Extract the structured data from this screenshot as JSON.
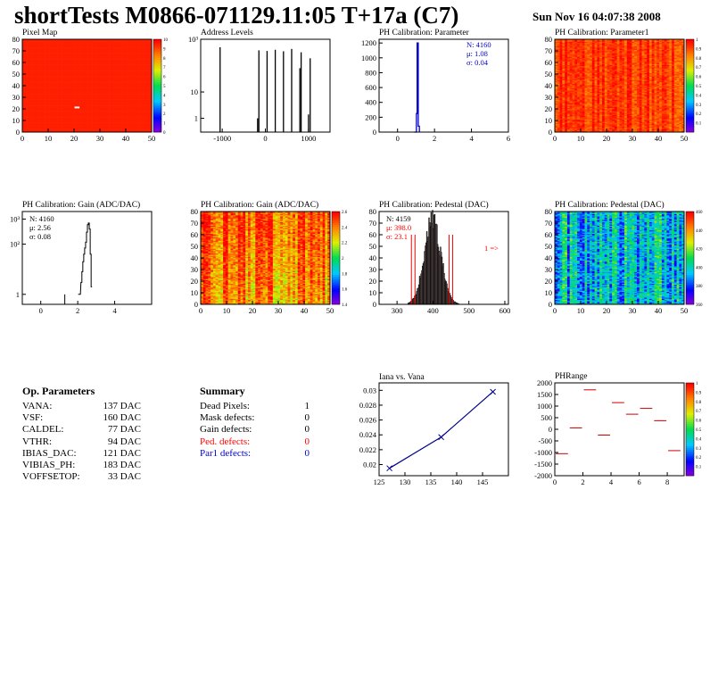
{
  "title": "shortTests M0866-071129.11:05 T+17a (C7)",
  "date": "Sun Nov 16 04:07:38 2008",
  "params": {
    "header": "Op. Parameters",
    "rows": [
      {
        "name": "VANA:",
        "value": "137 DAC"
      },
      {
        "name": "VSF:",
        "value": "160 DAC"
      },
      {
        "name": "CALDEL:",
        "value": "77 DAC"
      },
      {
        "name": "VTHR:",
        "value": "94 DAC"
      },
      {
        "name": "IBIAS_DAC:",
        "value": "121 DAC"
      },
      {
        "name": "VIBIAS_PH:",
        "value": "183 DAC"
      },
      {
        "name": "VOFFSETOP:",
        "value": "33 DAC"
      }
    ]
  },
  "summary": {
    "header": "Summary",
    "rows": [
      {
        "name": "Dead Pixels:",
        "value": "1",
        "color": "#000000"
      },
      {
        "name": "Mask defects:",
        "value": "0",
        "color": "#000000"
      },
      {
        "name": "Gain defects:",
        "value": "0",
        "color": "#000000"
      },
      {
        "name": "Ped. defects:",
        "value": "0",
        "color": "#ff0000"
      },
      {
        "name": "Par1 defects:",
        "value": "0",
        "color": "#0000cc"
      }
    ]
  },
  "chart_data": [
    {
      "type": "heatmap",
      "title": "Pixel Map",
      "xlim": [
        0,
        52
      ],
      "ylim": [
        0,
        80
      ],
      "xticks": [
        "0",
        "10",
        "20",
        "30",
        "40",
        "50"
      ],
      "yticks": [
        "0",
        "10",
        "20",
        "30",
        "40",
        "50",
        "60",
        "70",
        "80"
      ],
      "zticks": [
        "0",
        "1",
        "2",
        "3",
        "4",
        "5",
        "6",
        "7",
        "8",
        "9",
        "10"
      ],
      "zlim": [
        0,
        10
      ],
      "fill": 0.96,
      "noise": 0.0,
      "hot": [
        {
          "x": 21,
          "y": 21,
          "z": 0.1
        }
      ]
    },
    {
      "type": "bar",
      "title": "Address Levels",
      "log": true,
      "xlim": [
        -1500,
        1500
      ],
      "ylim_log": [
        0.3,
        1000
      ],
      "xticks": [
        "-1000",
        "0",
        "1000"
      ],
      "yticks": [
        "1",
        "10",
        "10³"
      ],
      "peaks": [
        {
          "x": -1050,
          "y": 500
        },
        {
          "x": -180,
          "y": 1
        },
        {
          "x": -150,
          "y": 380
        },
        {
          "x": 40,
          "y": 360
        },
        {
          "x": 230,
          "y": 400
        },
        {
          "x": 420,
          "y": 350
        },
        {
          "x": 610,
          "y": 430
        },
        {
          "x": 800,
          "y": 80
        },
        {
          "x": 830,
          "y": 320
        },
        {
          "x": 1000,
          "y": 1.4
        },
        {
          "x": 1040,
          "y": 190
        }
      ]
    },
    {
      "type": "bar",
      "title": "PH Calibration: Parameter",
      "xlim": [
        -1,
        6
      ],
      "ylim": [
        0,
        1250
      ],
      "xticks": [
        "0",
        "2",
        "4",
        "6"
      ],
      "yticks": [
        "0",
        "200",
        "400",
        "600",
        "800",
        "1000",
        "1200"
      ],
      "peak": {
        "x": 1.08,
        "y": 1200
      },
      "stats": [
        "N: 4160",
        "μ: 1.08",
        "σ: 0.04"
      ]
    },
    {
      "type": "heatmap",
      "title": "PH Calibration: Parameter1",
      "xlim": [
        0,
        52
      ],
      "ylim": [
        0,
        80
      ],
      "xticks": [
        "0",
        "10",
        "20",
        "30",
        "40",
        "50"
      ],
      "yticks": [
        "0",
        "10",
        "20",
        "30",
        "40",
        "50",
        "60",
        "70",
        "80"
      ],
      "zticks": [
        "",
        "0.1",
        "0.2",
        "0.3",
        "0.4",
        "0.5",
        "0.6",
        "0.7",
        "0.8",
        "0.9",
        "1"
      ],
      "zlim": [
        0,
        1
      ],
      "fill": 0.93,
      "noise": 0.06,
      "hot": []
    },
    {
      "type": "bar",
      "title": "PH Calibration: Gain (ADC/DAC)",
      "log": true,
      "xlim": [
        -1,
        6
      ],
      "ylim_log": [
        0.4,
        2000
      ],
      "xticks": [
        "0",
        "2",
        "4"
      ],
      "yticks": [
        "1",
        "10²",
        "10³"
      ],
      "stats": [
        "N: 4160",
        "μ: 2.56",
        "σ: 0.08"
      ],
      "bins": [
        {
          "x": 1.3,
          "y": 1
        },
        {
          "x": 2.05,
          "y": 1
        },
        {
          "x": 2.12,
          "y": 1
        },
        {
          "x": 2.2,
          "y": 3
        },
        {
          "x": 2.25,
          "y": 8
        },
        {
          "x": 2.3,
          "y": 20
        },
        {
          "x": 2.35,
          "y": 40
        },
        {
          "x": 2.4,
          "y": 70
        },
        {
          "x": 2.45,
          "y": 120
        },
        {
          "x": 2.5,
          "y": 300
        },
        {
          "x": 2.55,
          "y": 600
        },
        {
          "x": 2.6,
          "y": 700
        },
        {
          "x": 2.65,
          "y": 400
        },
        {
          "x": 2.7,
          "y": 40
        },
        {
          "x": 2.75,
          "y": 2
        }
      ]
    },
    {
      "type": "heatmap",
      "title": "PH Calibration: Gain (ADC/DAC)",
      "xlim": [
        0,
        52
      ],
      "ylim": [
        0,
        80
      ],
      "xticks": [
        "0",
        "10",
        "20",
        "30",
        "40",
        "50"
      ],
      "yticks": [
        "0",
        "10",
        "20",
        "30",
        "40",
        "50",
        "60",
        "70",
        "80"
      ],
      "zticks": [
        "1.4",
        "1.6",
        "1.8",
        "2",
        "2.2",
        "2.4",
        "2.6"
      ],
      "zlim": [
        1.3,
        2.7
      ],
      "fill": 0.88,
      "noise": 0.12,
      "hot": []
    },
    {
      "type": "bar",
      "title": "PH Calibration: Pedestal (DAC)",
      "xlim": [
        250,
        610
      ],
      "ylim": [
        0,
        80
      ],
      "xticks": [
        "300",
        "400",
        "500",
        "600"
      ],
      "yticks": [
        "0",
        "10",
        "20",
        "30",
        "40",
        "50",
        "60",
        "70",
        "80"
      ],
      "stats": [
        "N: 4159",
        "μ: 398.0",
        "σ: 23.1"
      ],
      "annotation": "1 =>",
      "mean": 398.0,
      "sigma": 23.1,
      "peak_height": 72,
      "cuts": [
        340,
        350,
        445,
        455
      ]
    },
    {
      "type": "heatmap",
      "title": "PH Calibration: Pedestal (DAC)",
      "xlim": [
        0,
        52
      ],
      "ylim": [
        0,
        80
      ],
      "xticks": [
        "0",
        "10",
        "20",
        "30",
        "40",
        "50"
      ],
      "yticks": [
        "0",
        "10",
        "20",
        "30",
        "40",
        "50",
        "60",
        "70",
        "80"
      ],
      "zticks": [
        "360",
        "380",
        "400",
        "420",
        "440",
        "460"
      ],
      "zlim": [
        350,
        470
      ],
      "fill": 0.35,
      "noise": 0.15,
      "hot": []
    },
    {
      "type": "line",
      "title": "Iana vs. Vana",
      "xlim": [
        125,
        150
      ],
      "ylim": [
        0.0185,
        0.031
      ],
      "xticks": [
        "125",
        "130",
        "135",
        "140",
        "145"
      ],
      "yticks": [
        "0.02",
        "0.022",
        "0.024",
        "0.026",
        "0.028",
        "0.03"
      ],
      "x": [
        127,
        137,
        147
      ],
      "y": [
        0.0195,
        0.0237,
        0.0298
      ]
    },
    {
      "type": "scatter",
      "title": "PHRange",
      "xlim": [
        0,
        9.2
      ],
      "ylim": [
        -2000,
        2000
      ],
      "xticks": [
        "0",
        "2",
        "4",
        "6",
        "8"
      ],
      "yticks": [
        "-2000",
        "-1500",
        "-1000",
        "-500",
        "0",
        "500",
        "1000",
        "1500",
        "2000"
      ],
      "zticks": [
        "",
        "0.1",
        "0.2",
        "0.3",
        "0.4",
        "0.5",
        "0.6",
        "0.7",
        "0.8",
        "0.9",
        "1"
      ],
      "x": [
        0,
        1,
        2,
        3,
        4,
        5,
        6,
        7,
        8
      ],
      "y": [
        -1050,
        60,
        1700,
        -250,
        1150,
        650,
        900,
        370,
        -920
      ]
    }
  ]
}
